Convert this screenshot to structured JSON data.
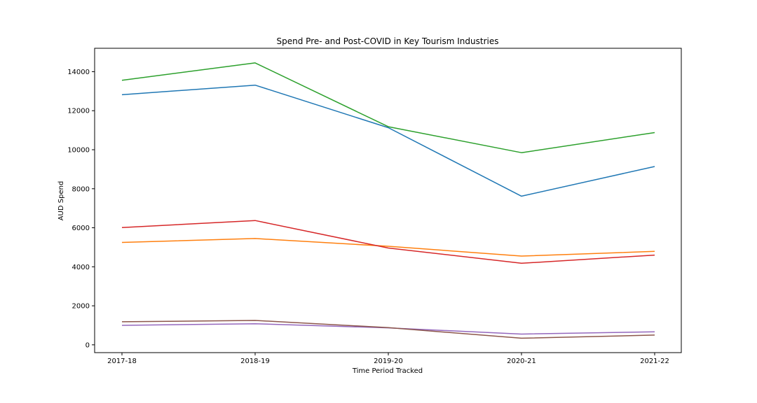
{
  "chart_data": {
    "type": "line",
    "title": "Spend Pre- and Post-COVID in Key Tourism Industries",
    "xlabel": "Time Period Tracked",
    "ylabel": "AUD Spend",
    "categories": [
      "2017-18",
      "2018-19",
      "2019-20",
      "2020-21",
      "2021-22"
    ],
    "yticks": [
      0,
      2000,
      4000,
      6000,
      8000,
      10000,
      12000,
      14000
    ],
    "ylim": [
      -400,
      15200
    ],
    "grid": false,
    "series": [
      {
        "color": "#1f77b4",
        "values": [
          12820,
          13310,
          11130,
          7620,
          9140
        ]
      },
      {
        "color": "#ff7f0e",
        "values": [
          5250,
          5450,
          5050,
          4550,
          4790
        ]
      },
      {
        "color": "#2ca02c",
        "values": [
          13560,
          14450,
          11180,
          9850,
          10880
        ]
      },
      {
        "color": "#d62728",
        "values": [
          6010,
          6370,
          4960,
          4180,
          4600
        ]
      },
      {
        "color": "#9467bd",
        "values": [
          1000,
          1080,
          870,
          550,
          670
        ]
      },
      {
        "color": "#8c564b",
        "values": [
          1180,
          1250,
          880,
          340,
          500
        ]
      }
    ]
  }
}
